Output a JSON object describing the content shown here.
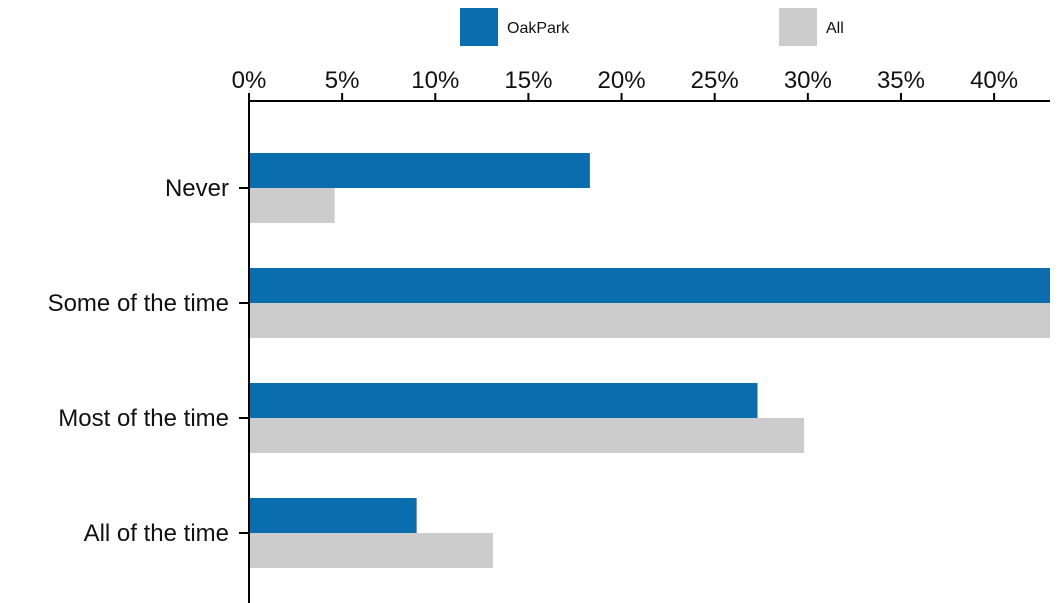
{
  "chart_data": {
    "type": "bar",
    "orientation": "horizontal",
    "categories": [
      "Never",
      "Some of the time",
      "Most of the time",
      "All of the time"
    ],
    "series": [
      {
        "name": "OakPark",
        "color": "#0a6eae",
        "values": [
          18.3,
          43.2,
          27.3,
          9.0
        ]
      },
      {
        "name": "All",
        "color": "#cccccc",
        "values": [
          4.6,
          43.2,
          29.8,
          13.1
        ]
      }
    ],
    "xlim": [
      0,
      43
    ],
    "x_ticks": [
      0,
      5,
      10,
      15,
      20,
      25,
      30,
      35,
      40
    ],
    "tick_labels": [
      "0%",
      "5%",
      "10%",
      "15%",
      "20%",
      "25%",
      "30%",
      "35%",
      "40%"
    ],
    "grid": false,
    "legend_position": "top"
  }
}
